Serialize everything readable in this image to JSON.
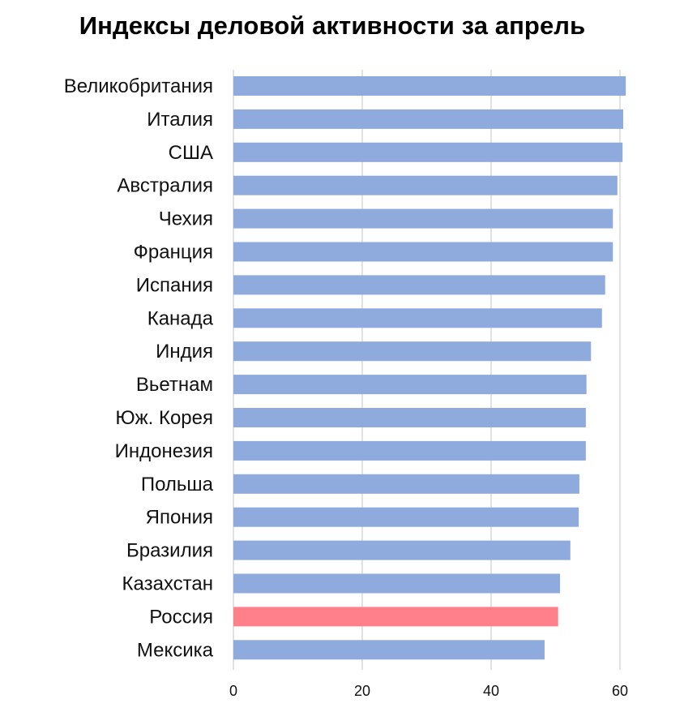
{
  "chart_data": {
    "type": "bar",
    "orientation": "horizontal",
    "title": "Индексы деловой активности за апрель",
    "xlabel": "",
    "ylabel": "",
    "xlim": [
      0,
      60
    ],
    "ticks": [
      0,
      20,
      40,
      60
    ],
    "grid": true,
    "legend": "none",
    "default_color": "#8faadc",
    "highlight_color": "#ff7f8a",
    "categories": [
      "Великобритания",
      "Италия",
      "США",
      "Австралия",
      "Чехия",
      "Франция",
      "Испания",
      "Канада",
      "Индия",
      "Вьетнам",
      "Юж. Корея",
      "Индонезия",
      "Польша",
      "Япония",
      "Бразилия",
      "Казахстан",
      "Россия",
      "Мексика"
    ],
    "values": [
      60.9,
      60.5,
      60.4,
      59.6,
      58.9,
      58.9,
      57.7,
      57.2,
      55.5,
      54.8,
      54.7,
      54.7,
      53.7,
      53.6,
      52.3,
      50.7,
      50.4,
      48.3
    ],
    "highlight": [
      "Россия"
    ]
  }
}
